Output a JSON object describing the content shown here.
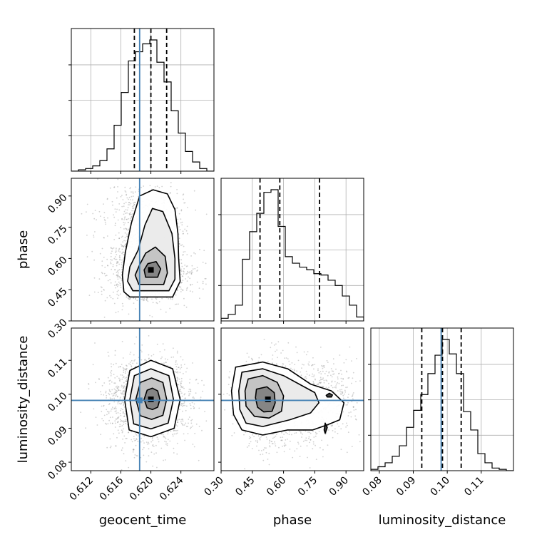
{
  "chart_data": {
    "type": "corner",
    "parameters": [
      "geocent_time",
      "phase",
      "luminosity_distance"
    ],
    "axis_labels": {
      "geocent_time": "geocent_time",
      "phase": "phase",
      "luminosity_distance": "luminosity_distance"
    },
    "ranges": {
      "geocent_time": [
        0.6094,
        0.6284
      ],
      "phase": [
        0.3,
        0.985
      ],
      "luminosity_distance": [
        0.0775,
        0.1195
      ]
    },
    "ticks": {
      "geocent_time": [
        {
          "value": 0.612,
          "label": "0.612"
        },
        {
          "value": 0.616,
          "label": "0.616"
        },
        {
          "value": 0.62,
          "label": "0.620"
        },
        {
          "value": 0.624,
          "label": "0.624"
        }
      ],
      "phase": [
        {
          "value": 0.3,
          "label": "0.30"
        },
        {
          "value": 0.45,
          "label": "0.45"
        },
        {
          "value": 0.6,
          "label": "0.60"
        },
        {
          "value": 0.75,
          "label": "0.75"
        },
        {
          "value": 0.9,
          "label": "0.90"
        }
      ],
      "luminosity_distance": [
        {
          "value": 0.08,
          "label": "0.08"
        },
        {
          "value": 0.09,
          "label": "0.09"
        },
        {
          "value": 0.1,
          "label": "0.10"
        },
        {
          "value": 0.11,
          "label": "0.11"
        }
      ]
    },
    "truths": {
      "geocent_time": 0.6185,
      "phase": null,
      "luminosity_distance": 0.0982
    },
    "histograms": {
      "geocent_time": {
        "edges": [
          0.6094,
          0.61035,
          0.6113,
          0.61225,
          0.6132,
          0.61415,
          0.6151,
          0.61605,
          0.617,
          0.61795,
          0.6189,
          0.61985,
          0.6208,
          0.62175,
          0.6227,
          0.62365,
          0.6246,
          0.62555,
          0.6265,
          0.62745,
          0.6284
        ],
        "counts": [
          0,
          0.01,
          0.02,
          0.04,
          0.08,
          0.17,
          0.35,
          0.6,
          0.84,
          0.91,
          0.97,
          1.0,
          0.83,
          0.68,
          0.46,
          0.29,
          0.15,
          0.07,
          0.02,
          0
        ],
        "quantiles": [
          0.6178,
          0.62,
          0.6221
        ]
      },
      "phase": {
        "edges": [
          0.3,
          0.33425,
          0.3685,
          0.40275,
          0.437,
          0.47125,
          0.5055,
          0.53975,
          0.574,
          0.60825,
          0.6425,
          0.67675,
          0.711,
          0.74525,
          0.7795,
          0.81375,
          0.848,
          0.88225,
          0.9165,
          0.95075,
          0.985
        ],
        "counts": [
          0.02,
          0.05,
          0.12,
          0.47,
          0.68,
          0.82,
          0.98,
          1.0,
          0.72,
          0.49,
          0.44,
          0.41,
          0.39,
          0.36,
          0.35,
          0.31,
          0.27,
          0.19,
          0.12,
          0.03
        ],
        "quantiles": [
          0.487,
          0.582,
          0.773
        ]
      },
      "luminosity_distance": {
        "edges": [
          0.0775,
          0.0796,
          0.0817,
          0.0838,
          0.0859,
          0.088,
          0.0901,
          0.0922,
          0.0943,
          0.0964,
          0.0985,
          0.1006,
          0.1027,
          0.1048,
          0.1069,
          0.109,
          0.1111,
          0.1132,
          0.1153,
          0.1174,
          0.1195
        ],
        "counts": [
          0.01,
          0.03,
          0.06,
          0.11,
          0.19,
          0.33,
          0.46,
          0.58,
          0.74,
          0.88,
          1.0,
          0.89,
          0.74,
          0.45,
          0.31,
          0.13,
          0.06,
          0.02,
          0.01,
          0
        ],
        "quantiles": [
          0.0925,
          0.0986,
          0.1041
        ]
      }
    },
    "pairs": [
      {
        "x": "geocent_time",
        "y": "phase",
        "peak": [
          0.62,
          0.545
        ],
        "contours": [
          [
            [
              0.6172,
              0.415
            ],
            [
              0.6229,
              0.415
            ],
            [
              0.6239,
              0.49
            ],
            [
              0.6237,
              0.6
            ],
            [
              0.6236,
              0.72
            ],
            [
              0.6232,
              0.835
            ],
            [
              0.6222,
              0.91
            ],
            [
              0.6203,
              0.93
            ],
            [
              0.6185,
              0.9
            ],
            [
              0.6174,
              0.77
            ],
            [
              0.6166,
              0.63
            ],
            [
              0.6162,
              0.52
            ],
            [
              0.6164,
              0.44
            ]
          ],
          [
            [
              0.6176,
              0.445
            ],
            [
              0.6224,
              0.445
            ],
            [
              0.6232,
              0.5
            ],
            [
              0.6232,
              0.6
            ],
            [
              0.6228,
              0.72
            ],
            [
              0.6216,
              0.825
            ],
            [
              0.6202,
              0.84
            ],
            [
              0.6192,
              0.76
            ],
            [
              0.6183,
              0.64
            ],
            [
              0.6172,
              0.56
            ],
            [
              0.6169,
              0.49
            ]
          ],
          [
            [
              0.6184,
              0.475
            ],
            [
              0.6217,
              0.475
            ],
            [
              0.6222,
              0.53
            ],
            [
              0.6219,
              0.61
            ],
            [
              0.6206,
              0.655
            ],
            [
              0.6193,
              0.625
            ],
            [
              0.6185,
              0.57
            ],
            [
              0.6179,
              0.52
            ]
          ],
          [
            [
              0.6193,
              0.51
            ],
            [
              0.6209,
              0.51
            ],
            [
              0.6213,
              0.55
            ],
            [
              0.6207,
              0.585
            ],
            [
              0.6196,
              0.575
            ],
            [
              0.6191,
              0.545
            ]
          ]
        ]
      },
      {
        "x": "geocent_time",
        "y": "luminosity_distance",
        "peak": [
          0.62,
          0.0985
        ],
        "contours": [
          [
            [
              0.6165,
              0.0985
            ],
            [
              0.6172,
              0.107
            ],
            [
              0.62,
              0.11
            ],
            [
              0.6229,
              0.1075
            ],
            [
              0.6239,
              0.0985
            ],
            [
              0.6231,
              0.09
            ],
            [
              0.62,
              0.0875
            ],
            [
              0.6171,
              0.0895
            ]
          ],
          [
            [
              0.6172,
              0.0985
            ],
            [
              0.6178,
              0.1055
            ],
            [
              0.62,
              0.1075
            ],
            [
              0.6224,
              0.1055
            ],
            [
              0.623,
              0.0985
            ],
            [
              0.6223,
              0.0915
            ],
            [
              0.62,
              0.0898
            ],
            [
              0.6177,
              0.0913
            ]
          ],
          [
            [
              0.618,
              0.0985
            ],
            [
              0.6186,
              0.1035
            ],
            [
              0.6201,
              0.1048
            ],
            [
              0.6216,
              0.1035
            ],
            [
              0.6221,
              0.0985
            ],
            [
              0.6216,
              0.0938
            ],
            [
              0.6201,
              0.0926
            ],
            [
              0.6186,
              0.0937
            ]
          ],
          [
            [
              0.6191,
              0.0985
            ],
            [
              0.6195,
              0.1012
            ],
            [
              0.6202,
              0.1018
            ],
            [
              0.6209,
              0.101
            ],
            [
              0.6212,
              0.0985
            ],
            [
              0.6209,
              0.0962
            ],
            [
              0.6202,
              0.0955
            ],
            [
              0.6195,
              0.096
            ]
          ]
        ]
      },
      {
        "x": "phase",
        "y": "luminosity_distance",
        "peak": [
          0.525,
          0.0985
        ],
        "contours": [
          [
            [
              0.37,
              0.108
            ],
            [
              0.5,
              0.1095
            ],
            [
              0.62,
              0.1075
            ],
            [
              0.73,
              0.103
            ],
            [
              0.83,
              0.101
            ],
            [
              0.89,
              0.0975
            ],
            [
              0.87,
              0.0925
            ],
            [
              0.81,
              0.091
            ],
            [
              0.74,
              0.0895
            ],
            [
              0.62,
              0.0895
            ],
            [
              0.5,
              0.088
            ],
            [
              0.4,
              0.0895
            ],
            [
              0.36,
              0.094
            ],
            [
              0.35,
              0.101
            ]
          ],
          [
            [
              0.4,
              0.1065
            ],
            [
              0.5,
              0.1075
            ],
            [
              0.6,
              0.1055
            ],
            [
              0.69,
              0.1025
            ],
            [
              0.75,
              0.1005
            ],
            [
              0.77,
              0.0975
            ],
            [
              0.73,
              0.0945
            ],
            [
              0.63,
              0.0925
            ],
            [
              0.5,
              0.0905
            ],
            [
              0.42,
              0.0915
            ],
            [
              0.39,
              0.0955
            ],
            [
              0.385,
              0.101
            ]
          ],
          [
            [
              0.43,
              0.1045
            ],
            [
              0.5,
              0.1055
            ],
            [
              0.57,
              0.1035
            ],
            [
              0.6,
              0.0995
            ],
            [
              0.59,
              0.095
            ],
            [
              0.53,
              0.093
            ],
            [
              0.46,
              0.0935
            ],
            [
              0.42,
              0.0965
            ],
            [
              0.415,
              0.101
            ]
          ],
          [
            [
              0.47,
              0.1015
            ],
            [
              0.52,
              0.1022
            ],
            [
              0.555,
              0.1005
            ],
            [
              0.56,
              0.0975
            ],
            [
              0.545,
              0.095
            ],
            [
              0.505,
              0.0948
            ],
            [
              0.475,
              0.0962
            ],
            [
              0.465,
              0.099
            ]
          ],
          [
            [
              0.805,
              0.0997
            ],
            [
              0.82,
              0.1003
            ],
            [
              0.835,
              0.0998
            ],
            [
              0.83,
              0.0992
            ],
            [
              0.81,
              0.0992
            ]
          ],
          [
            [
              0.795,
              0.0895
            ],
            [
              0.8,
              0.0915
            ],
            [
              0.81,
              0.0902
            ],
            [
              0.8,
              0.0885
            ]
          ]
        ]
      }
    ]
  }
}
